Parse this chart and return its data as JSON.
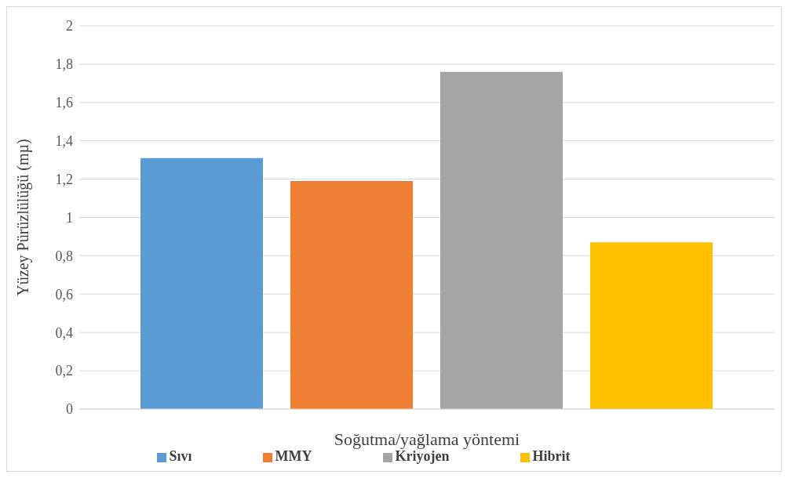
{
  "chart_data": {
    "type": "bar",
    "xlabel": "Soğutma/yağlama yöntemi",
    "ylabel": "Yüzey Pürüzlülüğü (mµ)",
    "categories": [
      null
    ],
    "series": [
      {
        "name": "Sıvı",
        "color": "#5b9bd5",
        "values": [
          1.31
        ]
      },
      {
        "name": "MMY",
        "color": "#ed7d31",
        "values": [
          1.19
        ]
      },
      {
        "name": "Kriyojen",
        "color": "#a5a5a5",
        "values": [
          1.76
        ]
      },
      {
        "name": "Hibrit",
        "color": "#ffc000",
        "values": [
          0.87
        ]
      }
    ],
    "ylim": [
      0,
      2
    ],
    "yticks": [
      0,
      {
        "value": 0.2,
        "label": "0,2"
      },
      {
        "value": 0.4,
        "label": "0,4"
      },
      {
        "value": 0.6,
        "label": "0,6"
      },
      {
        "value": 0.8,
        "label": "0,8"
      },
      1,
      {
        "value": 1.2,
        "label": "1,2"
      },
      {
        "value": 1.4,
        "label": "1,4"
      },
      {
        "value": 1.6,
        "label": "1,6"
      },
      {
        "value": 1.8,
        "label": "1,8"
      },
      2
    ],
    "grid": "y",
    "legend": "bottom"
  }
}
